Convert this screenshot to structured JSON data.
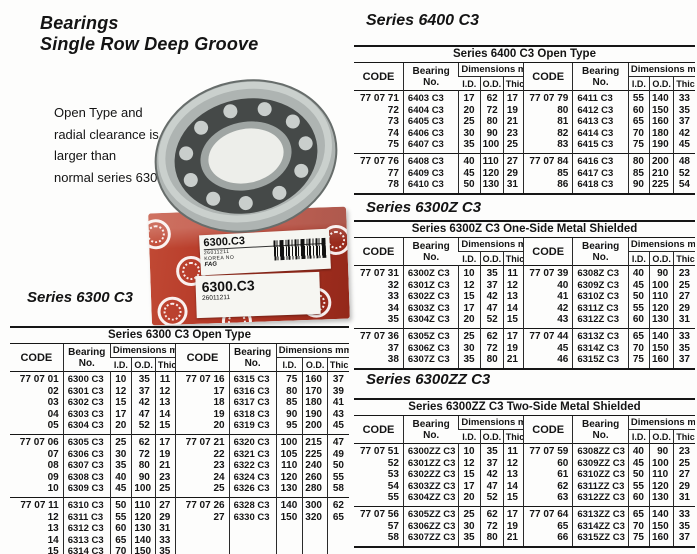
{
  "page": {
    "title_line1": "Bearings",
    "title_line2": "Single Row Deep Groove"
  },
  "intro": {
    "lines": [
      "Open Type and",
      "radial clearance is",
      "larger than",
      "normal series 6300."
    ]
  },
  "colors": {
    "box_red": "#b23524",
    "label_white": "#f6f6f2",
    "text_black": "#141414"
  },
  "product_box": {
    "model": "6300.C3",
    "serial": "26011211",
    "origin": "KOREA  NO",
    "brand": "FAG",
    "front_model": "6300.C3",
    "front_serial": "26011211",
    "barcode_icon": "barcode"
  },
  "tables": [
    {
      "heading": "Series 6400 C3",
      "title": "Series 6400 C3 Open Type",
      "headers": {
        "code": "CODE",
        "bearing_line1": "Bearing",
        "bearing_line2": "No.",
        "dims": "Dimensions mm",
        "id": "I.D.",
        "od": "O.D.",
        "thick": "Thick"
      },
      "groups": [
        {
          "left": [
            [
              "77 07 71",
              "6403 C3",
              "17",
              "62",
              "17"
            ],
            [
              "72",
              "6404 C3",
              "20",
              "72",
              "19"
            ],
            [
              "73",
              "6405 C3",
              "25",
              "80",
              "21"
            ],
            [
              "74",
              "6406 C3",
              "30",
              "90",
              "23"
            ],
            [
              "75",
              "6407 C3",
              "35",
              "100",
              "25"
            ]
          ],
          "right": [
            [
              "77 07 79",
              "6411 C3",
              "55",
              "140",
              "33"
            ],
            [
              "80",
              "6412 C3",
              "60",
              "150",
              "35"
            ],
            [
              "81",
              "6413 C3",
              "65",
              "160",
              "37"
            ],
            [
              "82",
              "6414 C3",
              "70",
              "180",
              "42"
            ],
            [
              "83",
              "6415 C3",
              "75",
              "190",
              "45"
            ]
          ]
        },
        {
          "left": [
            [
              "77 07 76",
              "6408 C3",
              "40",
              "110",
              "27"
            ],
            [
              "77",
              "6409 C3",
              "45",
              "120",
              "29"
            ],
            [
              "78",
              "6410 C3",
              "50",
              "130",
              "31"
            ]
          ],
          "right": [
            [
              "77 07 84",
              "6416 C3",
              "80",
              "200",
              "48"
            ],
            [
              "85",
              "6417 C3",
              "85",
              "210",
              "52"
            ],
            [
              "86",
              "6418 C3",
              "90",
              "225",
              "54"
            ]
          ]
        }
      ]
    },
    {
      "heading": "Series 6300Z C3",
      "title": "Series 6300Z C3 One-Side Metal Shielded",
      "headers": {
        "code": "CODE",
        "bearing_line1": "Bearing",
        "bearing_line2": "No.",
        "dims": "Dimensions mm",
        "id": "I.D.",
        "od": "O.D.",
        "thick": "Thick"
      },
      "groups": [
        {
          "left": [
            [
              "77 07 31",
              "6300Z C3",
              "10",
              "35",
              "11"
            ],
            [
              "32",
              "6301Z C3",
              "12",
              "37",
              "12"
            ],
            [
              "33",
              "6302Z C3",
              "15",
              "42",
              "13"
            ],
            [
              "34",
              "6303Z C3",
              "17",
              "47",
              "14"
            ],
            [
              "35",
              "6304Z C3",
              "20",
              "52",
              "15"
            ]
          ],
          "right": [
            [
              "77 07 39",
              "6308Z C3",
              "40",
              "90",
              "23"
            ],
            [
              "40",
              "6309Z C3",
              "45",
              "100",
              "25"
            ],
            [
              "41",
              "6310Z C3",
              "50",
              "110",
              "27"
            ],
            [
              "42",
              "6311Z C3",
              "55",
              "120",
              "29"
            ],
            [
              "43",
              "6312Z C3",
              "60",
              "130",
              "31"
            ]
          ]
        },
        {
          "left": [
            [
              "77 07 36",
              "6305Z C3",
              "25",
              "62",
              "17"
            ],
            [
              "37",
              "6306Z C3",
              "30",
              "72",
              "19"
            ],
            [
              "38",
              "6307Z C3",
              "35",
              "80",
              "21"
            ]
          ],
          "right": [
            [
              "77 07 44",
              "6313Z C3",
              "65",
              "140",
              "33"
            ],
            [
              "45",
              "6314Z C3",
              "70",
              "150",
              "35"
            ],
            [
              "46",
              "6315Z C3",
              "75",
              "160",
              "37"
            ]
          ]
        }
      ]
    },
    {
      "heading": "Series 6300ZZ C3",
      "title": "Series 6300ZZ C3 Two-Side Metal Shielded",
      "headers": {
        "code": "CODE",
        "bearing_line1": "Bearing",
        "bearing_line2": "No.",
        "dims": "Dimensions mm",
        "id": "I.D.",
        "od": "O.D.",
        "thick": "Thick"
      },
      "groups": [
        {
          "left": [
            [
              "77 07 51",
              "6300ZZ C3",
              "10",
              "35",
              "11"
            ],
            [
              "52",
              "6301ZZ C3",
              "12",
              "37",
              "12"
            ],
            [
              "53",
              "6302ZZ C3",
              "15",
              "42",
              "13"
            ],
            [
              "54",
              "6303ZZ C3",
              "17",
              "47",
              "14"
            ],
            [
              "55",
              "6304ZZ C3",
              "20",
              "52",
              "15"
            ]
          ],
          "right": [
            [
              "77 07 59",
              "6308ZZ C3",
              "40",
              "90",
              "23"
            ],
            [
              "60",
              "6309ZZ C3",
              "45",
              "100",
              "25"
            ],
            [
              "61",
              "6310ZZ C3",
              "50",
              "110",
              "27"
            ],
            [
              "62",
              "6311ZZ C3",
              "55",
              "120",
              "29"
            ],
            [
              "63",
              "6312ZZ C3",
              "60",
              "130",
              "31"
            ]
          ]
        },
        {
          "left": [
            [
              "77 07 56",
              "6305ZZ C3",
              "25",
              "62",
              "17"
            ],
            [
              "57",
              "6306ZZ C3",
              "30",
              "72",
              "19"
            ],
            [
              "58",
              "6307ZZ C3",
              "35",
              "80",
              "21"
            ]
          ],
          "right": [
            [
              "77 07 64",
              "6313ZZ C3",
              "65",
              "140",
              "33"
            ],
            [
              "65",
              "6314ZZ C3",
              "70",
              "150",
              "35"
            ],
            [
              "66",
              "6315ZZ C3",
              "75",
              "160",
              "37"
            ]
          ]
        }
      ]
    },
    {
      "heading": "Series 6300 C3",
      "title": "Series 6300 C3 Open Type",
      "headers": {
        "code": "CODE",
        "bearing_line1": "Bearing",
        "bearing_line2": "No.",
        "dims": "Dimensions mm",
        "id": "I.D.",
        "od": "O.D.",
        "thick": "Thick"
      },
      "groups": [
        {
          "left": [
            [
              "77 07 01",
              "6300 C3",
              "10",
              "35",
              "11"
            ],
            [
              "02",
              "6301 C3",
              "12",
              "37",
              "12"
            ],
            [
              "03",
              "6302 C3",
              "15",
              "42",
              "13"
            ],
            [
              "04",
              "6303 C3",
              "17",
              "47",
              "14"
            ],
            [
              "05",
              "6304 C3",
              "20",
              "52",
              "15"
            ]
          ],
          "right": [
            [
              "77 07 16",
              "6315 C3",
              "75",
              "160",
              "37"
            ],
            [
              "17",
              "6316 C3",
              "80",
              "170",
              "39"
            ],
            [
              "18",
              "6317 C3",
              "85",
              "180",
              "41"
            ],
            [
              "19",
              "6318 C3",
              "90",
              "190",
              "43"
            ],
            [
              "20",
              "6319 C3",
              "95",
              "200",
              "45"
            ]
          ]
        },
        {
          "left": [
            [
              "77 07 06",
              "6305 C3",
              "25",
              "62",
              "17"
            ],
            [
              "07",
              "6306 C3",
              "30",
              "72",
              "19"
            ],
            [
              "08",
              "6307 C3",
              "35",
              "80",
              "21"
            ],
            [
              "09",
              "6308 C3",
              "40",
              "90",
              "23"
            ],
            [
              "10",
              "6309 C3",
              "45",
              "100",
              "25"
            ]
          ],
          "right": [
            [
              "77 07 21",
              "6320 C3",
              "100",
              "215",
              "47"
            ],
            [
              "22",
              "6321 C3",
              "105",
              "225",
              "49"
            ],
            [
              "23",
              "6322 C3",
              "110",
              "240",
              "50"
            ],
            [
              "24",
              "6324 C3",
              "120",
              "260",
              "55"
            ],
            [
              "25",
              "6326 C3",
              "130",
              "280",
              "58"
            ]
          ]
        },
        {
          "left": [
            [
              "77 07 11",
              "6310 C3",
              "50",
              "110",
              "27"
            ],
            [
              "12",
              "6311 C3",
              "55",
              "120",
              "29"
            ],
            [
              "13",
              "6312 C3",
              "60",
              "130",
              "31"
            ],
            [
              "14",
              "6313 C3",
              "65",
              "140",
              "33"
            ],
            [
              "15",
              "6314 C3",
              "70",
              "150",
              "35"
            ]
          ],
          "right": [
            [
              "77 07 26",
              "6328 C3",
              "140",
              "300",
              "62"
            ],
            [
              "27",
              "6330 C3",
              "150",
              "320",
              "65"
            ]
          ]
        }
      ]
    }
  ]
}
